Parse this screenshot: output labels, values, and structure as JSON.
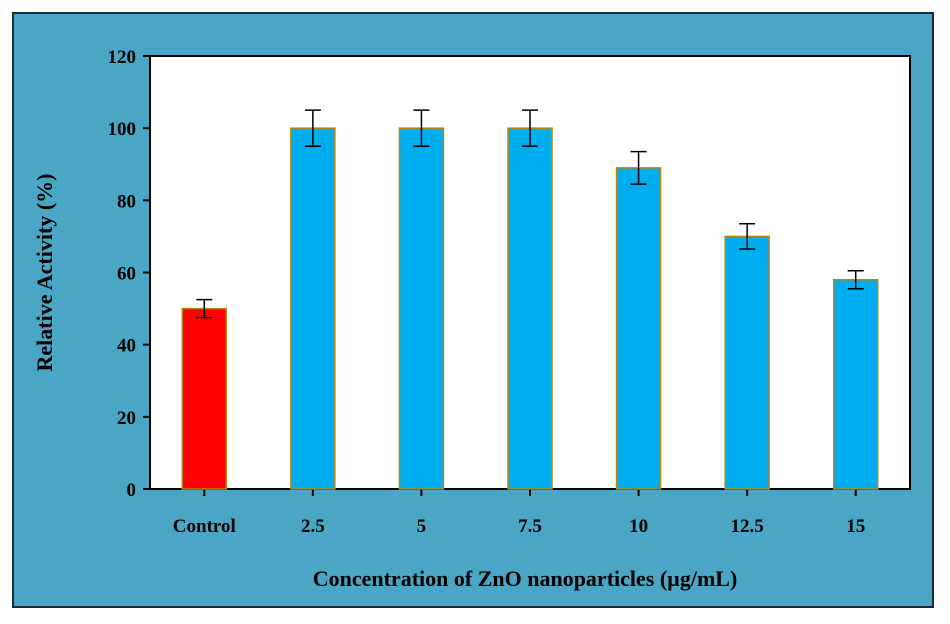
{
  "chart_data": {
    "type": "bar",
    "title": "",
    "xlabel": "Concentration of ZnO nanoparticles (µg/mL)",
    "ylabel": "Relative Activity (%)",
    "ylim": [
      0,
      120
    ],
    "yticks": [
      "0",
      "20",
      "40",
      "60",
      "80",
      "100",
      "120"
    ],
    "categories": [
      "Control",
      "2.5",
      "5",
      "7.5",
      "10",
      "12.5",
      "15"
    ],
    "values": [
      50,
      100,
      100,
      100,
      89,
      70,
      58
    ],
    "errors": [
      2.5,
      5,
      5,
      5,
      4.5,
      3.5,
      2.5
    ],
    "bar_colors": [
      "#ff0000",
      "#00aef0",
      "#00aef0",
      "#00aef0",
      "#00aef0",
      "#00aef0",
      "#00aef0"
    ],
    "bar_edge_color": "#b8860b",
    "grid": false,
    "legend": "none"
  },
  "colors": {
    "frame_background": "#4aa6c4",
    "plot_background": "#ffffff",
    "axis": "#000000"
  }
}
